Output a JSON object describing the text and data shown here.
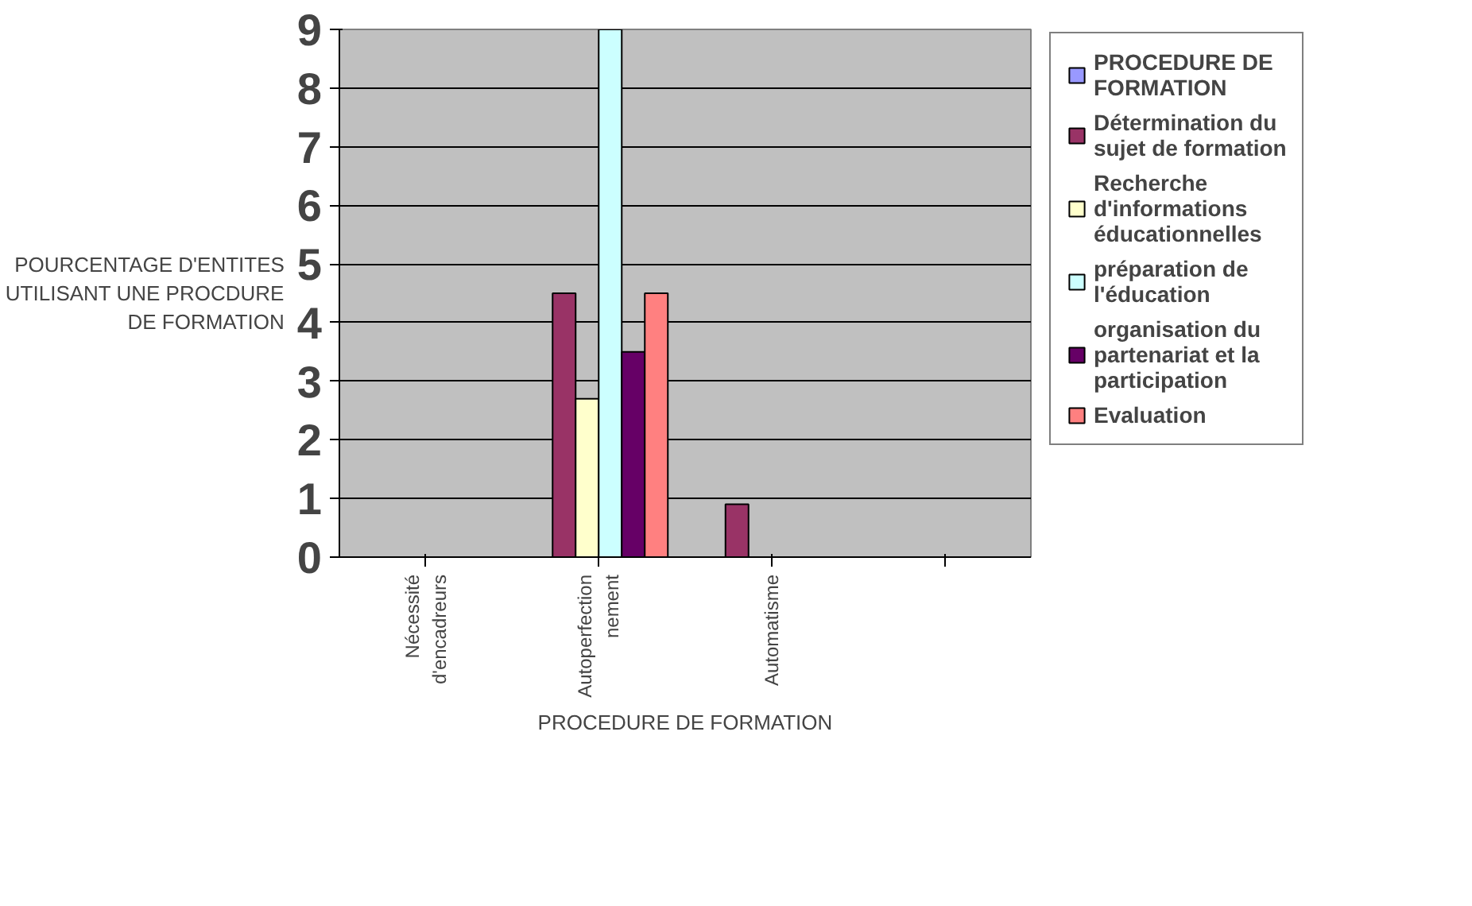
{
  "chart_data": {
    "type": "bar",
    "xlabel": "PROCEDURE DE FORMATION",
    "ylabel": "POURCENTAGE D'ENTITES UTILISANT UNE PROCDURE DE FORMATION",
    "categories": [
      "Nécessité d'encadreurs",
      "Autoperfectionnement",
      "Automatisme",
      null
    ],
    "series": [
      {
        "name": "PROCEDURE DE FORMATION",
        "color": "#9999ff",
        "values": [
          null,
          null,
          null,
          null
        ]
      },
      {
        "name": "Détermination du sujet de formation",
        "color": "#993366",
        "values": [
          null,
          4.5,
          0.9,
          null
        ]
      },
      {
        "name": "Recherche d'informations éducationnelles",
        "color": "#ffffcc",
        "values": [
          null,
          2.7,
          null,
          null
        ]
      },
      {
        "name": "préparation de l'éducation",
        "color": "#ccffff",
        "values": [
          null,
          9,
          null,
          null
        ]
      },
      {
        "name": "organisation du partenariat et la participation",
        "color": "#660066",
        "values": [
          null,
          3.5,
          null,
          null
        ]
      },
      {
        "name": "Evaluation",
        "color": "#ff8080",
        "values": [
          null,
          4.5,
          null,
          null
        ]
      }
    ],
    "ylim": [
      0,
      9
    ],
    "yticks": [
      0,
      1,
      2,
      3,
      4,
      5,
      6,
      7,
      8,
      9
    ],
    "grid": "y",
    "legend": "right"
  }
}
